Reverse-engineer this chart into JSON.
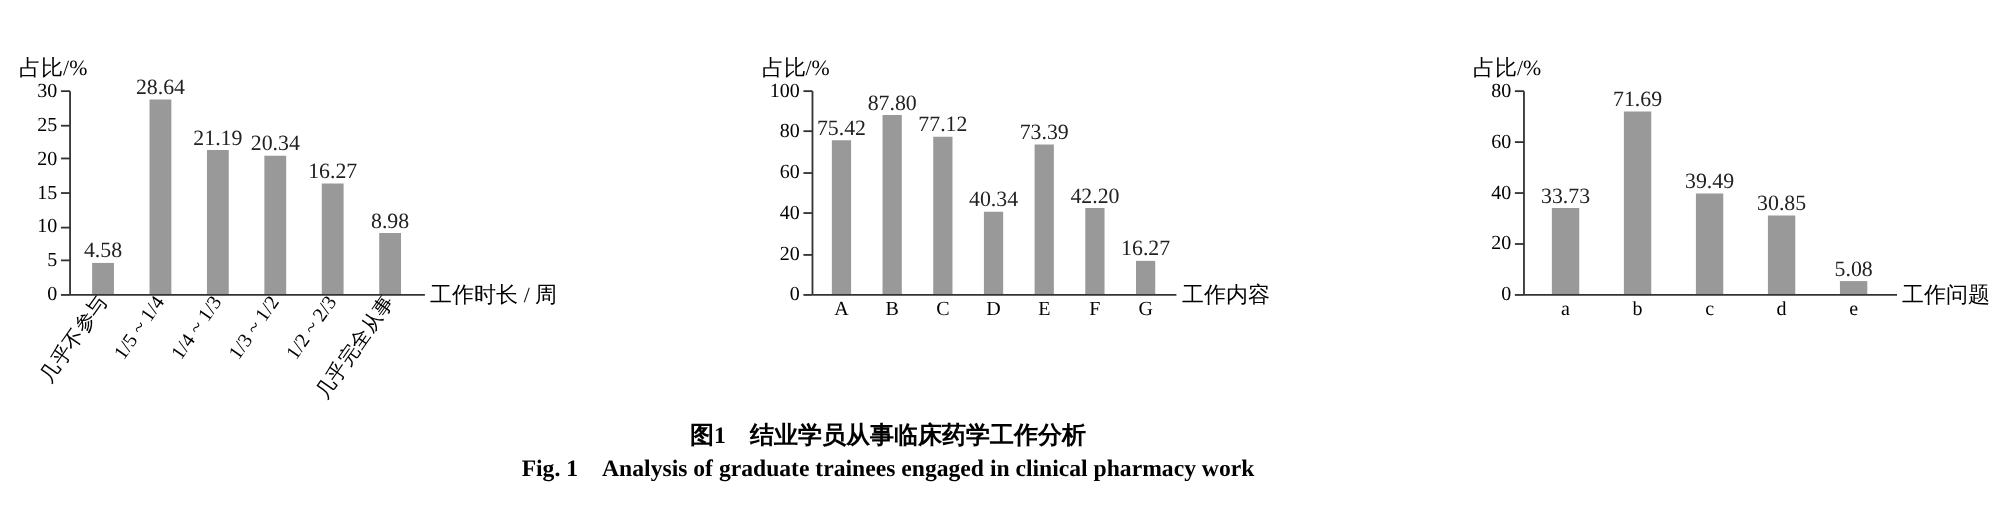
{
  "chart_data": [
    {
      "type": "bar",
      "xlabel": "工作时长 / 周",
      "ylabel": "占比/%",
      "categories": [
        "几乎不参与",
        "1/5 ~ 1/4",
        "1/4 ~ 1/3",
        "1/3 ~ 1/2",
        "1/2 ~ 2/3",
        "几乎完全从事"
      ],
      "values": [
        4.58,
        28.64,
        21.19,
        20.34,
        16.27,
        8.98
      ],
      "value_labels": [
        "4.58",
        "28.64",
        "21.19",
        "20.34",
        "16.27",
        "8.98"
      ],
      "color": "#999999",
      "ylim": [
        0,
        30
      ],
      "yticks": [
        0,
        5,
        10,
        15,
        20,
        25,
        30
      ],
      "grid": false,
      "annotations": [
        "图1　结业学员从事临床药学工作分析",
        "Fig. 1　Analysis of graduate trainees engaged in clinical pharmacy work"
      ]
    },
    {
      "type": "bar",
      "xlabel": "工作内容",
      "ylabel": "占比/%",
      "categories": [
        "A",
        "B",
        "C",
        "D",
        "E",
        "F",
        "G"
      ],
      "values": [
        75.42,
        87.8,
        77.12,
        40.34,
        73.39,
        42.2,
        16.27
      ],
      "value_labels": [
        "75.42",
        "87.80",
        "77.12",
        "40.34",
        "73.39",
        "42.20",
        "16.27"
      ],
      "color": "#999999",
      "ylim": [
        0,
        100
      ],
      "yticks": [
        0,
        20,
        40,
        60,
        80,
        100
      ],
      "grid": false
    },
    {
      "type": "bar",
      "xlabel": "工作问题",
      "ylabel": "占比/%",
      "categories": [
        "a",
        "b",
        "c",
        "d",
        "e"
      ],
      "values": [
        33.73,
        71.69,
        39.49,
        30.85,
        5.08
      ],
      "value_labels": [
        "33.73",
        "71.69",
        "39.49",
        "30.85",
        "5.08"
      ],
      "color": "#999999",
      "ylim": [
        0,
        80
      ],
      "yticks": [
        0,
        20,
        40,
        60,
        80
      ],
      "grid": false
    }
  ]
}
